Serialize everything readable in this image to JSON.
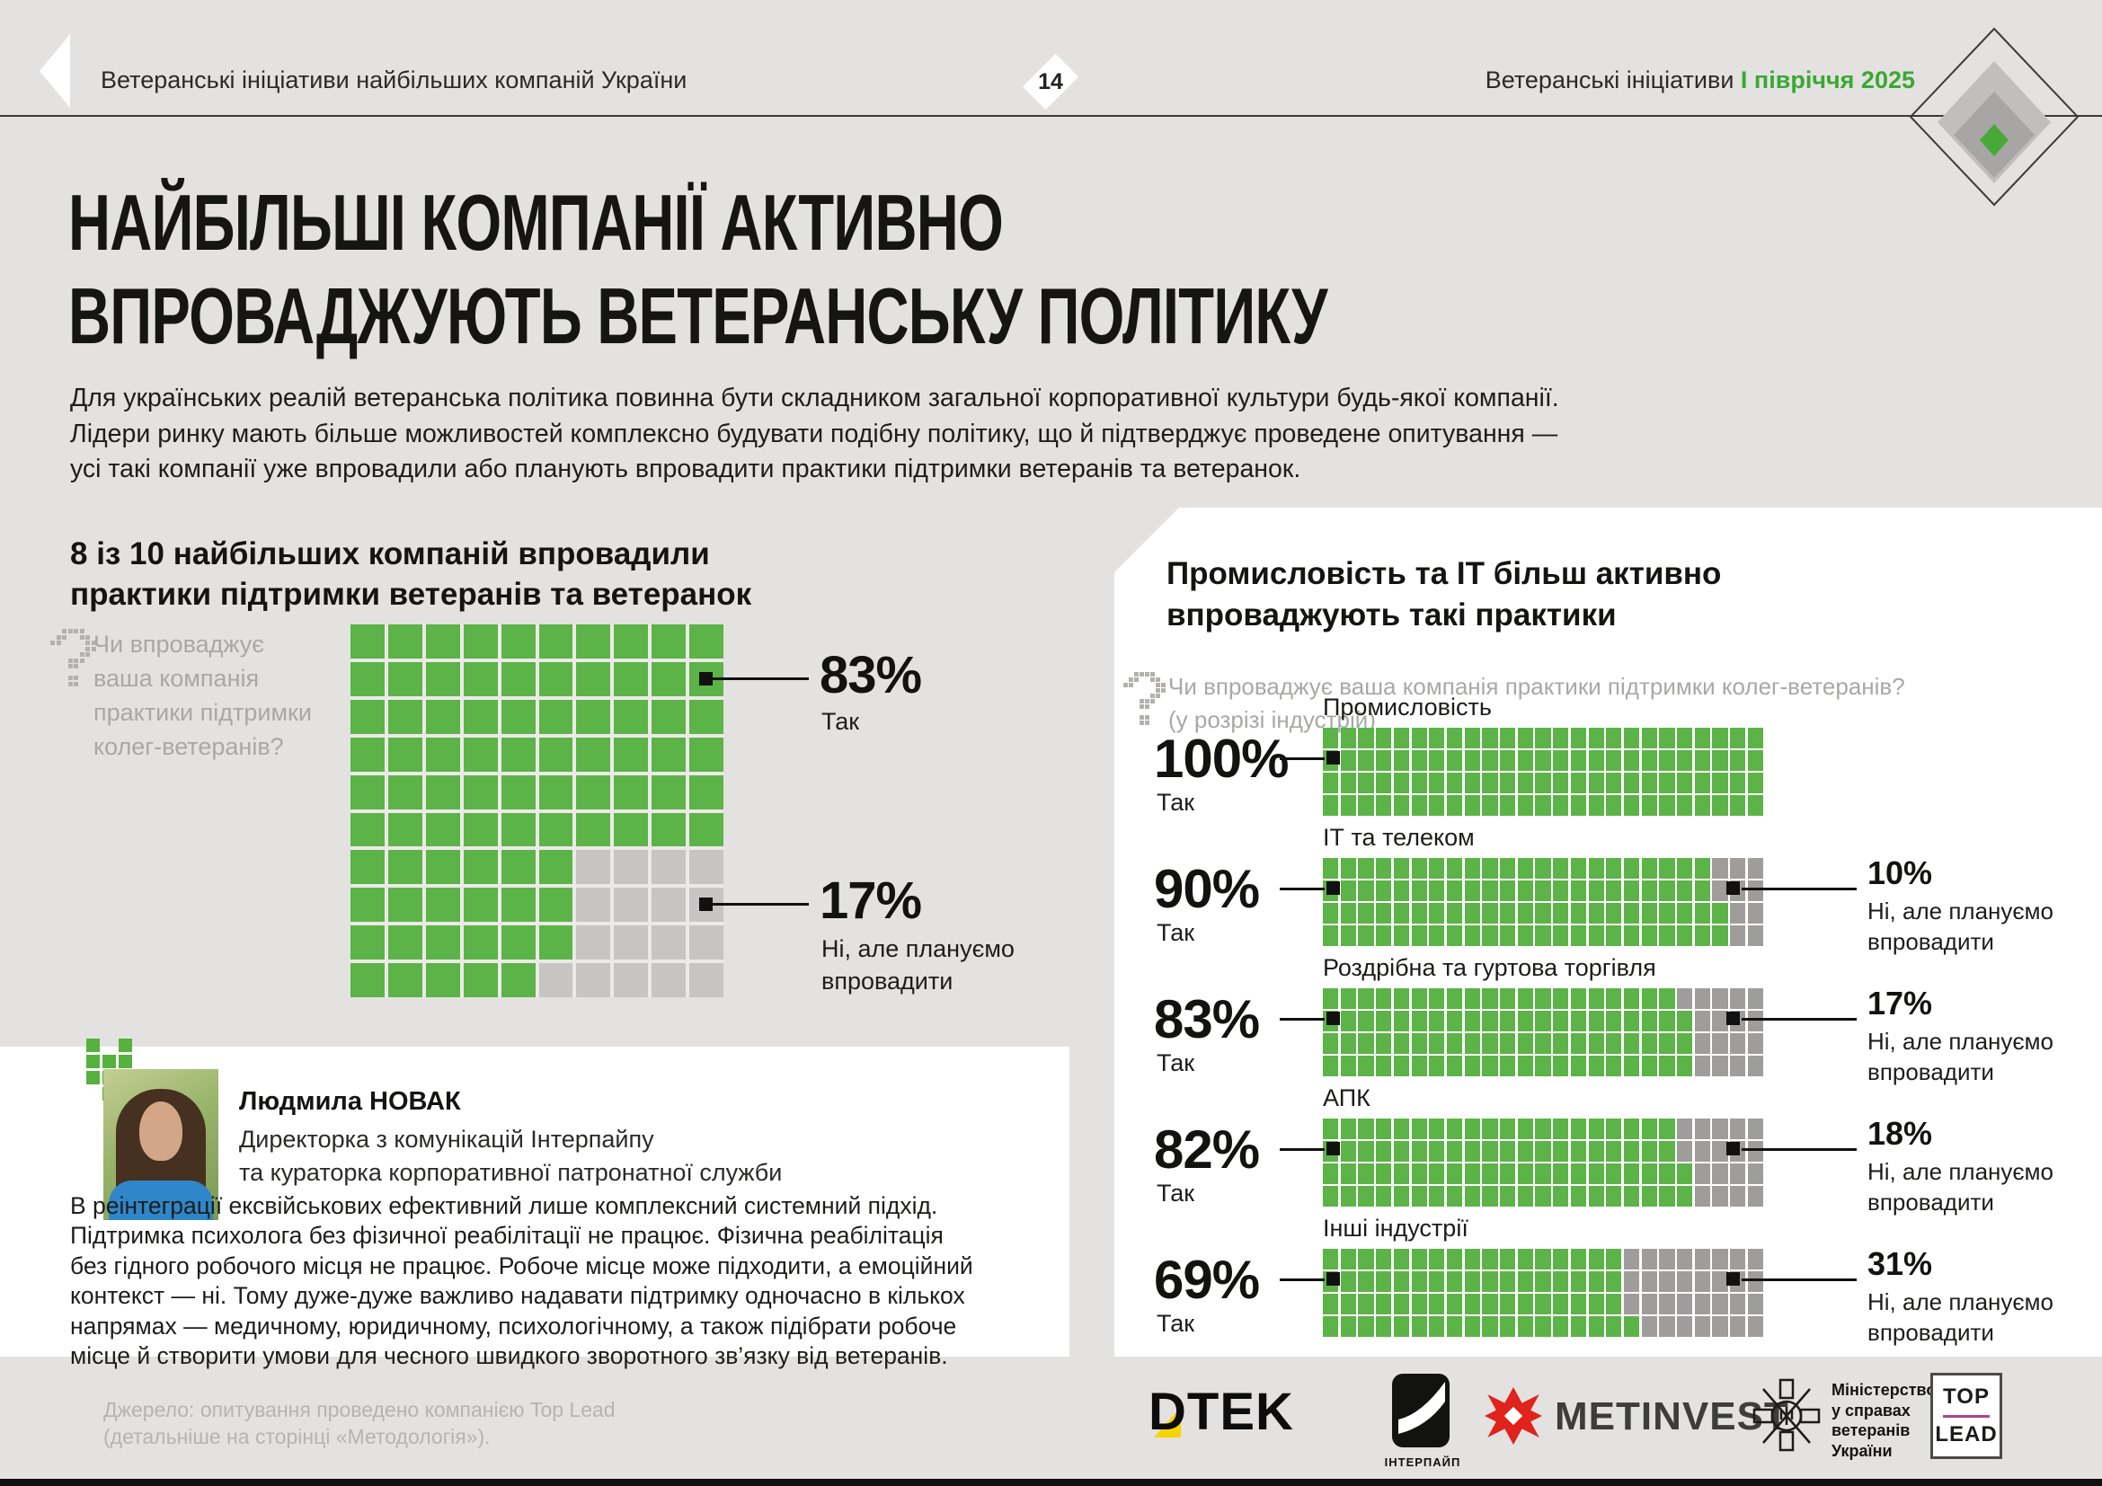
{
  "page": {
    "bg": "#e4e2e0",
    "accent_green": "#5cb347",
    "header_green": "#3aa834"
  },
  "header": {
    "left_title": "Ветеранські ініціативи найбільших компаній України",
    "page_number": "14",
    "right_prefix": "Ветеранські ініціативи ",
    "right_highlight": "І півріччя 2025"
  },
  "title": {
    "text": "НАЙБІЛЬШІ КОМПАНІЇ АКТИВНО\nВПРОВАДЖУЮТЬ ВЕТЕРАНСЬКУ ПОЛІТИКУ"
  },
  "intro": {
    "text": "Для українських реалій ветеранська політика повинна бути складником загальної корпоративної культури будь-якої компанії.\nЛідери ринку мають більше можливостей комплексно будувати подібну політику, що й підтверджує проведене опитування —\nусі такі компанії уже впровадили або планують впровадити практики підтримки ветеранів та ветеранок."
  },
  "left_chart": {
    "heading": "8 із 10 найбільших компаній впровадили\nпрактики підтримки ветеранів та ветеранок",
    "question": "Чи впроваджує\nваша компанія\nпрактики підтримки\nколег-ветеранів?",
    "yes_pct": "83%",
    "yes_label": "Так",
    "no_pct": "17%",
    "no_label": "Ні, але плануємо\nвпровадити"
  },
  "expert": {
    "name": "Людмила НОВАК",
    "role": "Директорка з комунікацій Інтерпайпу\nта кураторка корпоративної патронатної служби",
    "quote": "В реінтеграції ексвійськових ефективний лише комплексний системний підхід.\nПідтримка психолога без фізичної реабілітації не працює. Фізична реабілітація\nбез гідного робочого місця не працює. Робоче місце може підходити, а емоційний\nконтекст — ні. Тому дуже-дуже важливо надавати підтримку одночасно в кількох\nнапрямах — медичному, юридичному, психологічному, а також підібрати робоче\nмісце й створити умови для чесного швидкого зворотного зв’язку від ветеранів."
  },
  "right_chart": {
    "heading": "Промисловість та ІТ більш активно\nвпроваджують такі практики",
    "question": "Чи впроваджує ваша компанія практики підтримки колег-ветеранів?\n(у розрізі індустрій)",
    "rows": [
      {
        "label": "Промисловість",
        "yes": 100,
        "yes_pct": "100%",
        "yes_label": "Так"
      },
      {
        "label": "ІТ та телеком",
        "yes": 90,
        "yes_pct": "90%",
        "yes_label": "Так",
        "no_pct": "10%",
        "no_label": "Ні, але плануємо\nвпровадити"
      },
      {
        "label": "Роздрібна та гуртова торгівля",
        "yes": 83,
        "yes_pct": "83%",
        "yes_label": "Так",
        "no_pct": "17%",
        "no_label": "Ні, але плануємо\nвпровадити"
      },
      {
        "label": "АПК",
        "yes": 82,
        "yes_pct": "82%",
        "yes_label": "Так",
        "no_pct": "18%",
        "no_label": "Ні, але плануємо\nвпровадити"
      },
      {
        "label": "Інші індустрії",
        "yes": 69,
        "yes_pct": "69%",
        "yes_label": "Так",
        "no_pct": "31%",
        "no_label": "Ні, але плануємо\nвпровадити"
      }
    ]
  },
  "chart_data": [
    {
      "type": "waffle",
      "title": "8 із 10 найбільших компаній впровадили практики підтримки ветеранів та ветеранок",
      "question": "Чи впроваджує ваша компанія практики підтримки колег-ветеранів?",
      "categories": [
        "Так",
        "Ні, але плануємо впровадити"
      ],
      "values": [
        83,
        17
      ],
      "grid": {
        "rows": 10,
        "cols": 10,
        "row_green_counts": [
          10,
          10,
          10,
          10,
          10,
          10,
          6,
          6,
          6,
          5
        ]
      },
      "colors": {
        "yes": "#5cb347",
        "no": "#c7c5c3"
      }
    },
    {
      "type": "waffle-multiples",
      "title": "Промисловість та ІТ більш активно впроваджують такі практики",
      "question": "Чи впроваджує ваша компанія практики підтримки колег-ветеранів? (у розрізі індустрій)",
      "categories": [
        "Промисловість",
        "ІТ та телеком",
        "Роздрібна та гуртова торгівля",
        "АПК",
        "Інші індустрії"
      ],
      "series": [
        {
          "name": "Так",
          "values": [
            100,
            90,
            83,
            82,
            69
          ]
        },
        {
          "name": "Ні, але плануємо впровадити",
          "values": [
            0,
            10,
            17,
            18,
            31
          ]
        }
      ],
      "grid": {
        "rows": 4,
        "cols": 25,
        "fill": "column-major, green from bottom of partial column"
      },
      "colors": {
        "yes": "#5cb347",
        "no": "#9e9d9b"
      }
    }
  ],
  "source": {
    "text": "Джерело: опитування проведено компанією Top Lead\n(детальніше на сторінці «Методологія»)."
  },
  "logos": {
    "dtek_text": "DTEK",
    "interpipe_label": "ІНТЕРПАЙП",
    "metinvest_text": "METINVEST",
    "ministry_text": "Міністерство\nу справах\nветеранів\nУкраїни",
    "toplead_top": "TOP",
    "toplead_bottom": "LEAD"
  }
}
